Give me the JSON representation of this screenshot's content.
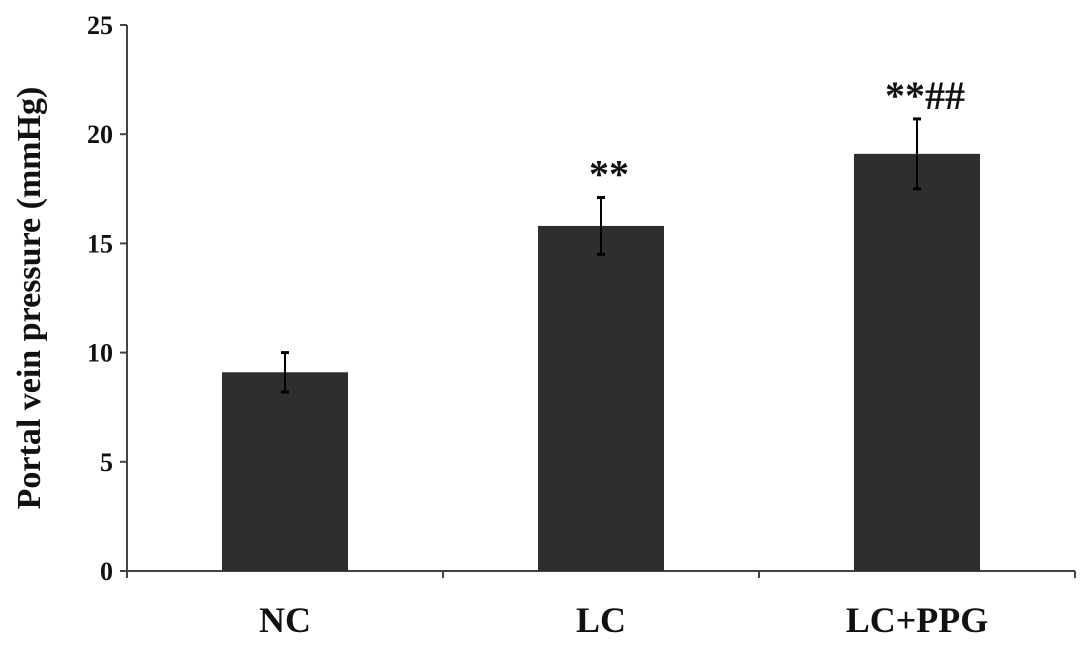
{
  "chart_data": {
    "type": "bar",
    "title": "",
    "xlabel": "",
    "ylabel": "Portal vein pressure (mmHg)",
    "categories": [
      "NC",
      "LC",
      "LC+PPG"
    ],
    "values": [
      9.1,
      15.8,
      19.1
    ],
    "errors": [
      0.9,
      1.3,
      1.6
    ],
    "annotations": [
      "",
      "**",
      "**##"
    ],
    "ylim": [
      0,
      25
    ],
    "yticks": [
      0,
      5,
      10,
      15,
      20,
      25
    ],
    "grid": false,
    "bar_color": "#2e2e2e"
  }
}
